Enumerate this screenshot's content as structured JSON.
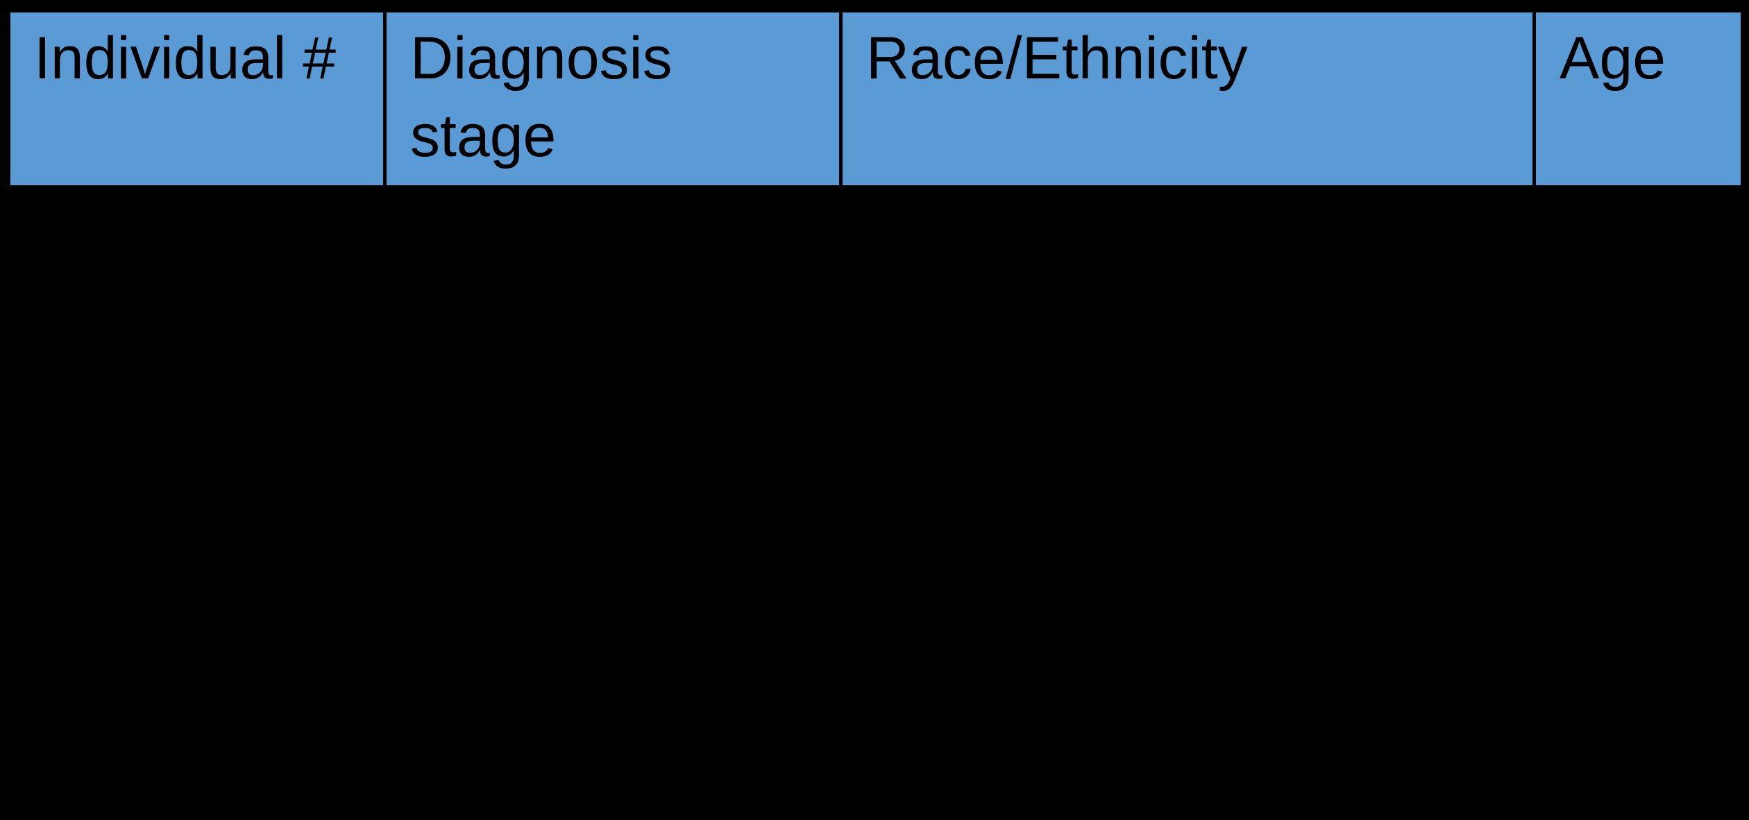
{
  "table": {
    "description": "Table header row on black background; no body rows visible",
    "header": {
      "columns": [
        {
          "id": "individual-number",
          "label": "Individual #"
        },
        {
          "id": "diagnosis-stage",
          "label": "Diagnosis stage"
        },
        {
          "id": "race-ethnicity",
          "label": "Race/Ethnicity"
        },
        {
          "id": "age",
          "label": "Age"
        }
      ]
    },
    "rows": []
  },
  "colors": {
    "header_fill": "#5b9bd5",
    "grid_border": "#000000",
    "canvas_background": "#000000",
    "header_text": "#000000"
  }
}
